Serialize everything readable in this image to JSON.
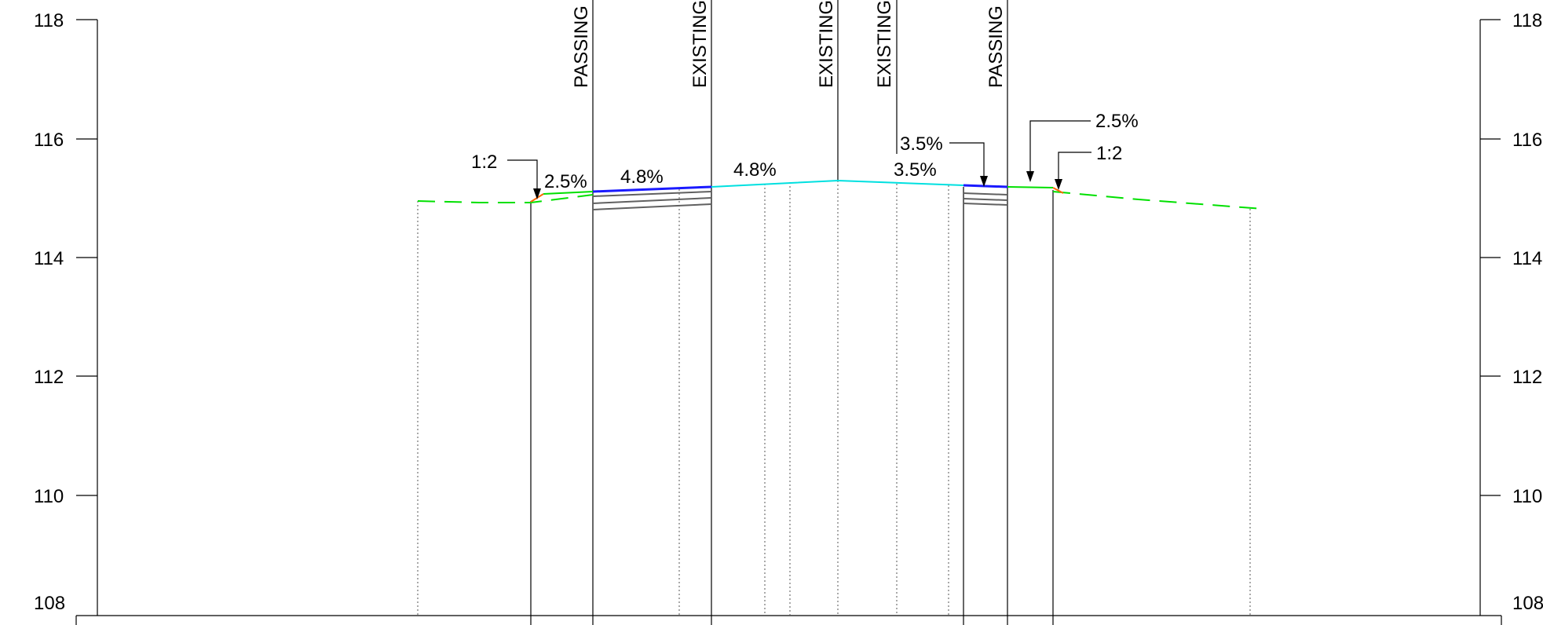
{
  "axes": {
    "left_ticks": [
      "118",
      "116",
      "114",
      "112",
      "110",
      "108"
    ],
    "right_ticks": [
      "118",
      "116",
      "114",
      "112",
      "110",
      "108"
    ]
  },
  "profile_labels": [
    "PASSING",
    "EXISTING",
    "EXISTING",
    "EXISTING",
    "PASSING"
  ],
  "annotations": {
    "left_slope": "1:2",
    "left_shoulder": "2.5%",
    "left_lane_1": "4.8%",
    "left_lane_2": "4.8%",
    "right_lane_upper": "3.5%",
    "right_lane_lower": "3.5%",
    "right_shoulder": "2.5%",
    "right_slope": "1:2"
  },
  "colors": {
    "existing_ground": "#00e000",
    "finished_surface": "#00e0e0",
    "new_pavement": "#1a1aff",
    "pavement_layers": "#606060",
    "side_slope": "#ff6600"
  }
}
